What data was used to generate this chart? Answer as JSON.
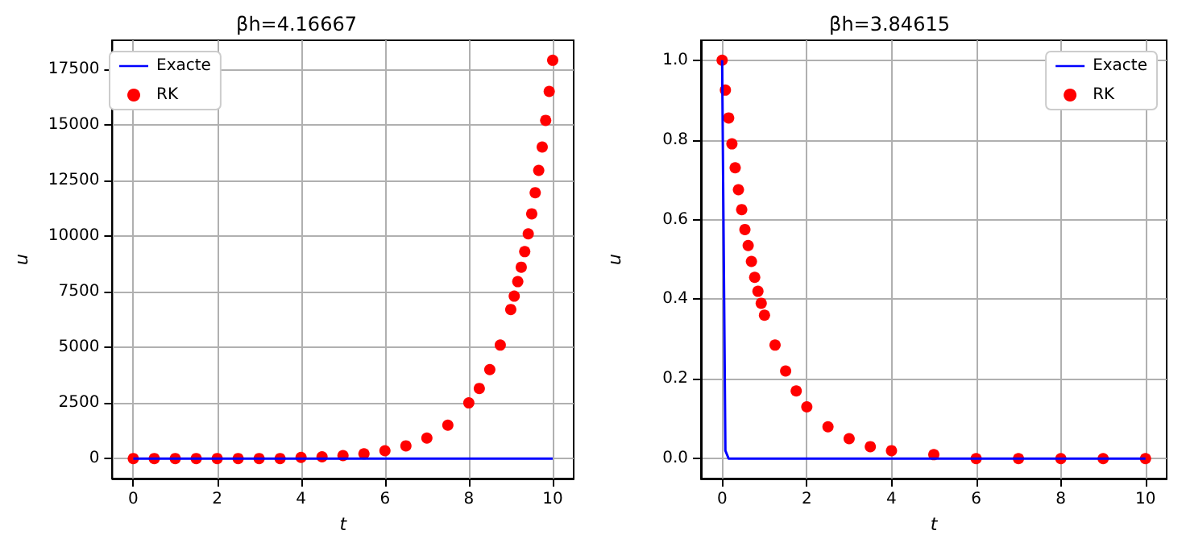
{
  "chart_data": [
    {
      "type": "scatter",
      "title": "βh=4.16667",
      "xlabel": "t",
      "ylabel": "u",
      "xlim": [
        -0.5,
        10.5
      ],
      "xticks": [
        0,
        2,
        4,
        6,
        8,
        10
      ],
      "ylim": [
        -900,
        18800
      ],
      "yticks": [
        0,
        2500,
        5000,
        7500,
        10000,
        12500,
        15000,
        17500
      ],
      "grid": true,
      "legend": "top left",
      "series": [
        {
          "name": "Exacte",
          "type": "line",
          "color": "#0000ff",
          "x": [
            0,
            10
          ],
          "values": [
            0,
            0
          ]
        },
        {
          "name": "RK",
          "marker": "circle",
          "color": "#ff0000",
          "x": [
            0,
            0.5,
            1,
            1.5,
            2,
            2.5,
            3,
            3.5,
            4,
            4.5,
            5,
            5.5,
            6,
            6.5,
            7,
            7.5,
            8,
            8.25,
            8.5,
            8.75,
            9,
            9.083,
            9.167,
            9.25,
            9.333,
            9.417,
            9.5,
            9.583,
            9.667,
            9.75,
            9.833,
            9.917,
            10
          ],
          "values": [
            0,
            0,
            0,
            0,
            0,
            0,
            0,
            0,
            50,
            80,
            130,
            210,
            350,
            570,
            920,
            1500,
            2500,
            3150,
            4000,
            5100,
            6700,
            7300,
            7950,
            8600,
            9300,
            10100,
            11000,
            11950,
            12950,
            14000,
            15200,
            16500,
            17900
          ]
        }
      ]
    },
    {
      "type": "scatter",
      "title": "βh=3.84615",
      "xlabel": "t",
      "ylabel": "u",
      "xlim": [
        -0.5,
        10.5
      ],
      "xticks": [
        0,
        2,
        4,
        6,
        8,
        10
      ],
      "ylim": [
        -0.05,
        1.05
      ],
      "yticks": [
        {
          "value": 0,
          "label": "0.0"
        },
        0.2,
        0.4,
        0.6,
        0.8,
        {
          "value": 1,
          "label": "1.0"
        }
      ],
      "grid": true,
      "legend": "top right",
      "series": [
        {
          "name": "Exacte",
          "type": "line",
          "color": "#0000ff",
          "x": [
            0,
            0.077,
            0.154,
            10
          ],
          "values": [
            1,
            0.02,
            0,
            0
          ]
        },
        {
          "name": "RK",
          "marker": "circle",
          "color": "#ff0000",
          "x": [
            0,
            0.077,
            0.154,
            0.231,
            0.308,
            0.385,
            0.462,
            0.538,
            0.615,
            0.692,
            0.769,
            0.846,
            0.923,
            1,
            1.25,
            1.5,
            1.75,
            2,
            2.5,
            3,
            3.5,
            4,
            5,
            6,
            7,
            8,
            9,
            10
          ],
          "values": [
            1,
            0.925,
            0.855,
            0.79,
            0.73,
            0.675,
            0.625,
            0.575,
            0.535,
            0.495,
            0.455,
            0.42,
            0.39,
            0.36,
            0.285,
            0.22,
            0.17,
            0.13,
            0.08,
            0.05,
            0.03,
            0.02,
            0.01,
            0,
            0,
            0,
            0,
            0
          ]
        }
      ]
    }
  ]
}
